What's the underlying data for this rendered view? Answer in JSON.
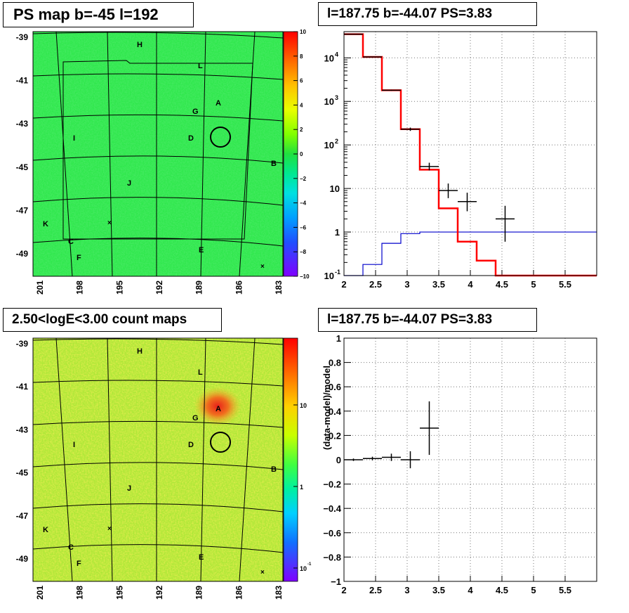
{
  "titles": {
    "ps_map": "PS map b=-45 l=192",
    "count_map": "2.50<logE<3.00 count maps",
    "spectrum": "l=187.75 b=-44.07 PS=3.83",
    "residual": "l=187.75 b=-44.07 PS=3.83"
  },
  "colors": {
    "map_green": "#33e64d",
    "model_red": "#ff0000",
    "background_blue": "#0000cc",
    "data_black": "#000000"
  },
  "map_axes": {
    "lat_ticks": [
      "-39",
      "-41",
      "-43",
      "-45",
      "-47",
      "-49"
    ],
    "lon_ticks": [
      "201",
      "198",
      "195",
      "192",
      "189",
      "186",
      "183"
    ],
    "source_labels": [
      "H",
      "L",
      "A",
      "G",
      "D",
      "I",
      "B",
      "J",
      "K",
      "C",
      "E",
      "F"
    ]
  },
  "ps_colorbar": {
    "ticks": [
      "10",
      "8",
      "6",
      "4",
      "2",
      "0",
      "−2",
      "−4",
      "−6",
      "−8",
      "−10"
    ],
    "range": [
      -10,
      10
    ]
  },
  "count_colorbar": {
    "ticks": [
      "10",
      "1",
      "10"
    ],
    "minor_exponent": "-1",
    "scale": "log"
  },
  "chart_data": [
    {
      "type": "line",
      "title": "l=187.75 b=-44.07 PS=3.83",
      "xlabel": "",
      "ylabel": "",
      "xlim": [
        2,
        6
      ],
      "ylim": [
        0.1,
        40000
      ],
      "yscale": "log",
      "grid": true,
      "x_ticks": [
        "2",
        "2.5",
        "3",
        "3.5",
        "4",
        "4.5",
        "5",
        "5.5"
      ],
      "y_ticks": [
        {
          "base": "10",
          "exp": "-1"
        },
        {
          "base": "1",
          "exp": ""
        },
        {
          "base": "10",
          "exp": ""
        },
        {
          "base": "10",
          "exp": "2"
        },
        {
          "base": "10",
          "exp": "3"
        },
        {
          "base": "10",
          "exp": "4"
        }
      ],
      "model_steps": {
        "edges": [
          2.0,
          2.3,
          2.6,
          2.9,
          3.2,
          3.5,
          3.8,
          4.1,
          4.4,
          6.0
        ],
        "values": [
          35000,
          10500,
          1800,
          230,
          27,
          3.5,
          0.6,
          0.22,
          0.1
        ]
      },
      "background_steps": {
        "edges": [
          2.0,
          2.3,
          2.6,
          2.9,
          3.2,
          6.0
        ],
        "values": [
          0.1,
          0.18,
          0.55,
          0.92,
          1.0
        ]
      },
      "data_points": [
        {
          "x": 2.15,
          "y": 35000,
          "xerr": 0.15,
          "ylo": 34500,
          "yhi": 35500
        },
        {
          "x": 2.45,
          "y": 10500,
          "xerr": 0.15,
          "ylo": 10300,
          "yhi": 10700
        },
        {
          "x": 2.75,
          "y": 1800,
          "xerr": 0.15,
          "ylo": 1750,
          "yhi": 1850
        },
        {
          "x": 3.05,
          "y": 230,
          "xerr": 0.15,
          "ylo": 210,
          "yhi": 250
        },
        {
          "x": 3.35,
          "y": 32,
          "xerr": 0.15,
          "ylo": 26,
          "yhi": 39
        },
        {
          "x": 3.65,
          "y": 9,
          "xerr": 0.15,
          "ylo": 6,
          "yhi": 13
        },
        {
          "x": 3.95,
          "y": 5,
          "xerr": 0.15,
          "ylo": 3,
          "yhi": 8
        },
        {
          "x": 4.55,
          "y": 2,
          "xerr": 0.15,
          "ylo": 0.6,
          "yhi": 4
        }
      ]
    },
    {
      "type": "scatter",
      "title": "l=187.75 b=-44.07 PS=3.83",
      "xlabel": "",
      "ylabel": "(data-model)/model",
      "xlim": [
        2,
        6
      ],
      "ylim": [
        -1,
        1
      ],
      "grid": true,
      "x_ticks": [
        "2",
        "2.5",
        "3",
        "3.5",
        "4",
        "4.5",
        "5",
        "5.5"
      ],
      "y_ticks": [
        "1",
        "0.8",
        "0.6",
        "0.4",
        "0.2",
        "0",
        "−0.2",
        "−0.4",
        "−0.6",
        "−0.8",
        "−1"
      ],
      "data_points": [
        {
          "x": 2.15,
          "y": 0.0,
          "xerr": 0.15,
          "yerr": 0.01
        },
        {
          "x": 2.45,
          "y": 0.01,
          "xerr": 0.15,
          "yerr": 0.015
        },
        {
          "x": 2.75,
          "y": 0.02,
          "xerr": 0.15,
          "yerr": 0.03
        },
        {
          "x": 3.05,
          "y": 0.0,
          "xerr": 0.15,
          "yerr": 0.07
        },
        {
          "x": 3.35,
          "y": 0.26,
          "xerr": 0.15,
          "yerr": 0.22
        }
      ]
    }
  ]
}
